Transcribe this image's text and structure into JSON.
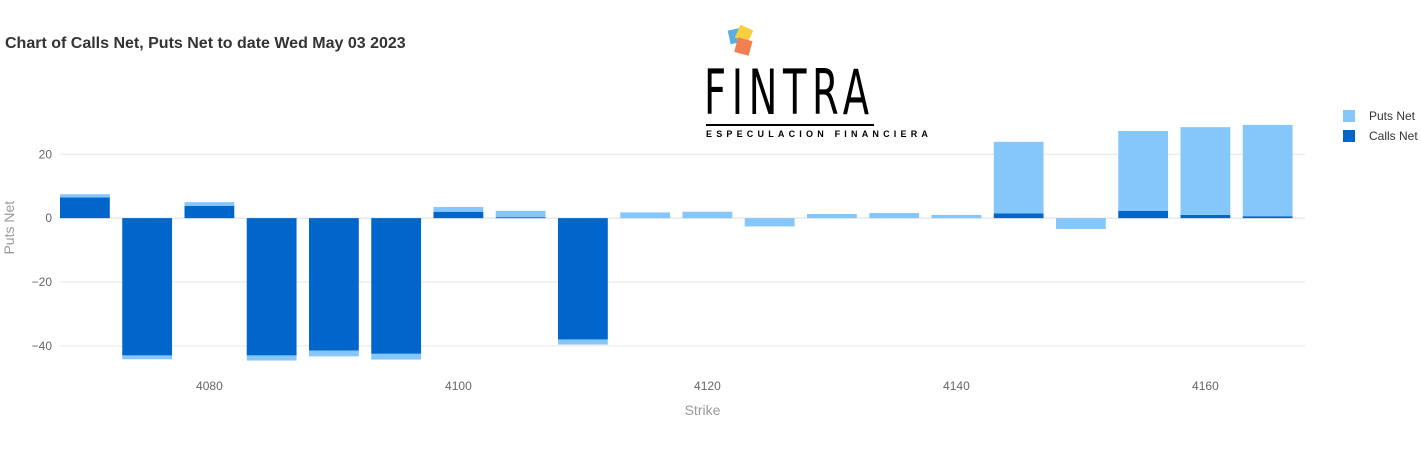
{
  "title": "Chart of Calls Net, Puts Net to date Wed May 03 2023",
  "logo": {
    "word": "FINTRA",
    "tagline": "ESPECULACION FINANCIERA",
    "colors": [
      "#f4d03f",
      "#5dade2",
      "#ec7063",
      "#f08050"
    ]
  },
  "colors": {
    "puts": "#85c7fa",
    "calls": "#0066cc",
    "grid": "#e6e6e6",
    "axis_text": "#666666",
    "axis_title": "#999999"
  },
  "chart_data": {
    "type": "bar",
    "title": "Chart of Calls Net, Puts Net to date Wed May 03 2023",
    "xlabel": "Strike",
    "ylabel": "Puts Net",
    "xlim": [
      4068,
      4168
    ],
    "ylim": [
      -46,
      37
    ],
    "xticks": [
      4080,
      4100,
      4120,
      4140,
      4160
    ],
    "yticks": [
      20,
      0,
      -20,
      -40
    ],
    "grid": true,
    "legend_position": "top-right",
    "x": [
      4070,
      4075,
      4080,
      4085,
      4090,
      4095,
      4100,
      4105,
      4110,
      4115,
      4120,
      4125,
      4130,
      4135,
      4140,
      4145,
      4150,
      4155,
      4160,
      4165
    ],
    "series": [
      {
        "name": "Calls Net",
        "color": "#0066cc",
        "values": [
          6.5,
          -43,
          3.8,
          -43,
          -41.5,
          -42.5,
          2,
          0.3,
          -38,
          0,
          0,
          0,
          0,
          0,
          0,
          1.5,
          0,
          2.3,
          1,
          0.6
        ]
      },
      {
        "name": "Puts Net",
        "color": "#85c7fa",
        "values": [
          1,
          -1.2,
          1.2,
          -1.6,
          -1.8,
          -1.8,
          1.5,
          2,
          -1.6,
          1.8,
          2,
          -2.6,
          1.3,
          1.6,
          1,
          22.4,
          -3.4,
          25,
          27.5,
          28.6
        ]
      }
    ]
  }
}
